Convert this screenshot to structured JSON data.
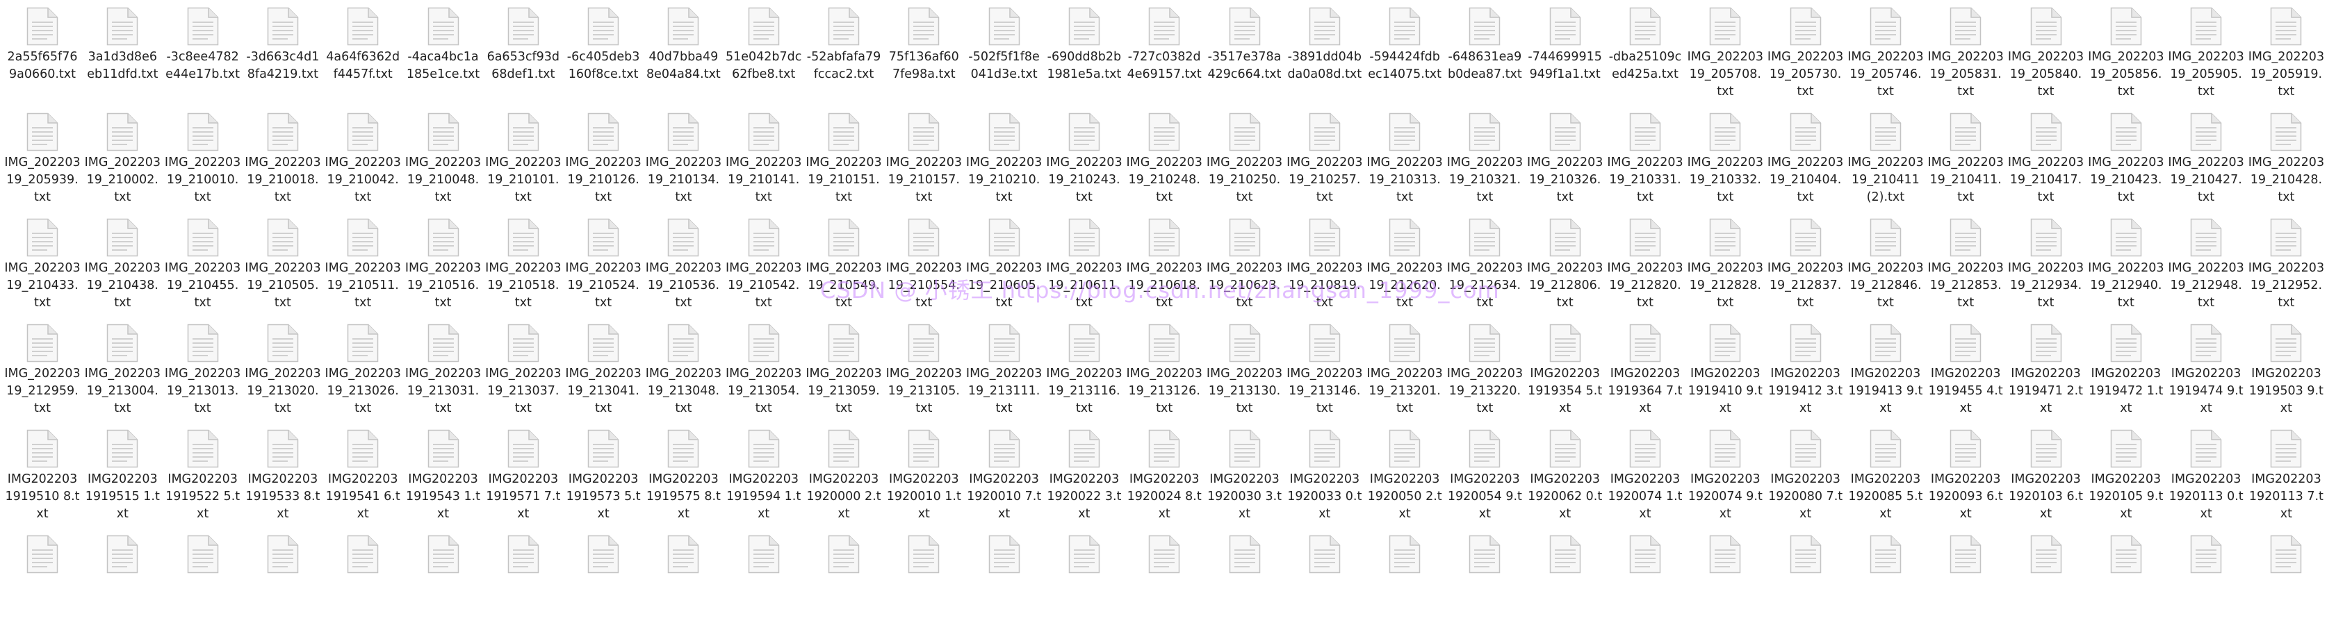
{
  "folder": {
    "icon": "text-document-icon",
    "files": [
      [
        "2a55f65f769a0660.txt",
        "3a1d3d8e6eb11dfd.txt",
        "-3c8ee4782e44e17b.txt",
        "-3d663c4d18fa4219.txt",
        "4a64f6362df4457f.txt",
        "-4aca4bc1a185e1ce.txt",
        "6a653cf93d68def1.txt",
        "-6c405deb3160f8ce.txt",
        "40d7bba498e04a84.txt",
        "51e042b7dc62fbe8.txt",
        "-52abfafa79fccac2.txt",
        "75f136af607fe98a.txt",
        "-502f5f1f8e041d3e.txt",
        "-690dd8b2b1981e5a.txt",
        "-727c0382d4e69157.txt",
        "-3517e378a429c664.txt",
        "-3891dd04bda0a08d.txt",
        "-594424fdbec14075.txt",
        "-648631ea9b0dea87.txt",
        "-744699915949f1a1.txt",
        "-dba25109ced425a.txt",
        "IMG_20220319_205708.txt",
        "IMG_20220319_205730.txt",
        "IMG_20220319_205746.txt",
        "IMG_20220319_205831.txt",
        "IMG_20220319_205840.txt",
        "IMG_20220319_205856.txt",
        "IMG_20220319_205905.txt",
        "IMG_20220319_205919.txt"
      ],
      [
        "IMG_20220319_205939.txt",
        "IMG_20220319_210002.txt",
        "IMG_20220319_210010.txt",
        "IMG_20220319_210018.txt",
        "IMG_20220319_210042.txt",
        "IMG_20220319_210048.txt",
        "IMG_20220319_210101.txt",
        "IMG_20220319_210126.txt",
        "IMG_20220319_210134.txt",
        "IMG_20220319_210141.txt",
        "IMG_20220319_210151.txt",
        "IMG_20220319_210157.txt",
        "IMG_20220319_210210.txt",
        "IMG_20220319_210243.txt",
        "IMG_20220319_210248.txt",
        "IMG_20220319_210250.txt",
        "IMG_20220319_210257.txt",
        "IMG_20220319_210313.txt",
        "IMG_20220319_210321.txt",
        "IMG_20220319_210326.txt",
        "IMG_20220319_210331.txt",
        "IMG_20220319_210332.txt",
        "IMG_20220319_210404.txt",
        "IMG_20220319_210411 (2).txt",
        "IMG_20220319_210411.txt",
        "IMG_20220319_210417.txt",
        "IMG_20220319_210423.txt",
        "IMG_20220319_210427.txt",
        "IMG_20220319_210428.txt"
      ],
      [
        "IMG_20220319_210433.txt",
        "IMG_20220319_210438.txt",
        "IMG_20220319_210455.txt",
        "IMG_20220319_210505.txt",
        "IMG_20220319_210511.txt",
        "IMG_20220319_210516.txt",
        "IMG_20220319_210518.txt",
        "IMG_20220319_210524.txt",
        "IMG_20220319_210536.txt",
        "IMG_20220319_210542.txt",
        "IMG_20220319_210549.txt",
        "IMG_20220319_210554.txt",
        "IMG_20220319_210605.txt",
        "IMG_20220319_210611.txt",
        "IMG_20220319_210618.txt",
        "IMG_20220319_210623.txt",
        "IMG_20220319_210819.txt",
        "IMG_20220319_212620.txt",
        "IMG_20220319_212634.txt",
        "IMG_20220319_212806.txt",
        "IMG_20220319_212820.txt",
        "IMG_20220319_212828.txt",
        "IMG_20220319_212837.txt",
        "IMG_20220319_212846.txt",
        "IMG_20220319_212853.txt",
        "IMG_20220319_212934.txt",
        "IMG_20220319_212940.txt",
        "IMG_20220319_212948.txt",
        "IMG_20220319_212952.txt"
      ],
      [
        "IMG_20220319_212959.txt",
        "IMG_20220319_213004.txt",
        "IMG_20220319_213013.txt",
        "IMG_20220319_213020.txt",
        "IMG_20220319_213026.txt",
        "IMG_20220319_213031.txt",
        "IMG_20220319_213037.txt",
        "IMG_20220319_213041.txt",
        "IMG_20220319_213048.txt",
        "IMG_20220319_213054.txt",
        "IMG_20220319_213059.txt",
        "IMG_20220319_213105.txt",
        "IMG_20220319_213111.txt",
        "IMG_20220319_213116.txt",
        "IMG_20220319_213126.txt",
        "IMG_20220319_213130.txt",
        "IMG_20220319_213146.txt",
        "IMG_20220319_213201.txt",
        "IMG_20220319_213220.txt",
        "IMG2022031919354 5.txt",
        "IMG2022031919364 7.txt",
        "IMG2022031919410 9.txt",
        "IMG2022031919412 3.txt",
        "IMG2022031919413 9.txt",
        "IMG2022031919455 4.txt",
        "IMG2022031919471 2.txt",
        "IMG2022031919472 1.txt",
        "IMG2022031919474 9.txt",
        "IMG2022031919503 9.txt"
      ],
      [
        "IMG2022031919510 8.txt",
        "IMG2022031919515 1.txt",
        "IMG2022031919522 5.txt",
        "IMG2022031919533 8.txt",
        "IMG2022031919541 6.txt",
        "IMG2022031919543 1.txt",
        "IMG2022031919571 7.txt",
        "IMG2022031919573 5.txt",
        "IMG2022031919575 8.txt",
        "IMG2022031919594 1.txt",
        "IMG2022031920000 2.txt",
        "IMG2022031920010 1.txt",
        "IMG2022031920010 7.txt",
        "IMG2022031920022 3.txt",
        "IMG2022031920024 8.txt",
        "IMG2022031920030 3.txt",
        "IMG2022031920033 0.txt",
        "IMG2022031920050 2.txt",
        "IMG2022031920054 9.txt",
        "IMG2022031920062 0.txt",
        "IMG2022031920074 1.txt",
        "IMG2022031920074 9.txt",
        "IMG2022031920080 7.txt",
        "IMG2022031920085 5.txt",
        "IMG2022031920093 6.txt",
        "IMG2022031920103 6.txt",
        "IMG2022031920105 9.txt",
        "IMG2022031920113 0.txt",
        "IMG2022031920113 7.txt"
      ],
      [
        "",
        "",
        "",
        "",
        "",
        "",
        "",
        "",
        "",
        "",
        "",
        "",
        "",
        "",
        "",
        "",
        "",
        "",
        "",
        "",
        "",
        "",
        "",
        "",
        "",
        "",
        "",
        "",
        ""
      ]
    ]
  },
  "watermark": "CSDN @ 小锈工 https://blog.csdn.net/zhangsan_1999_com"
}
